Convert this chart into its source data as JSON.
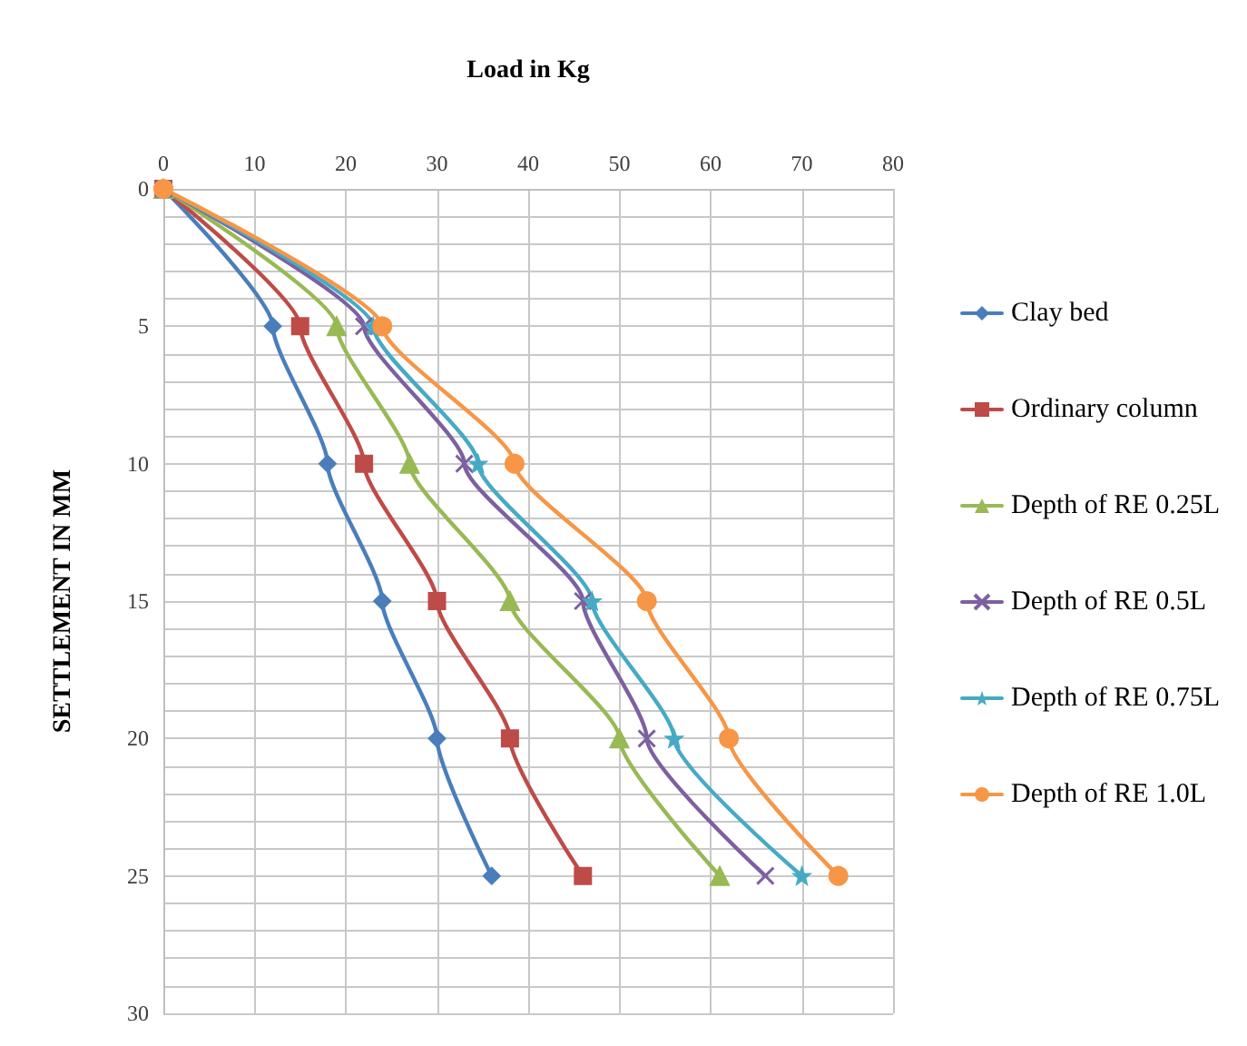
{
  "chart_data": {
    "type": "line",
    "xlabel": "Load in Kg",
    "ylabel": "SETTLEMENT IN MM",
    "xlim": [
      0,
      80
    ],
    "xticks": [
      0,
      10,
      20,
      30,
      40,
      50,
      60,
      70,
      80
    ],
    "ylim": [
      30,
      0
    ],
    "yticks": [
      0,
      {
        "value": 1,
        "label": null
      },
      {
        "value": 2,
        "label": null
      },
      {
        "value": 3,
        "label": null
      },
      {
        "value": 4,
        "label": null
      },
      5,
      {
        "value": 6,
        "label": null
      },
      {
        "value": 7,
        "label": null
      },
      {
        "value": 8,
        "label": null
      },
      {
        "value": 9,
        "label": null
      },
      10,
      {
        "value": 11,
        "label": null
      },
      {
        "value": 12,
        "label": null
      },
      {
        "value": 13,
        "label": null
      },
      {
        "value": 14,
        "label": null
      },
      15,
      {
        "value": 16,
        "label": null
      },
      {
        "value": 17,
        "label": null
      },
      {
        "value": 18,
        "label": null
      },
      {
        "value": 19,
        "label": null
      },
      20,
      {
        "value": 21,
        "label": null
      },
      {
        "value": 22,
        "label": null
      },
      {
        "value": 23,
        "label": null
      },
      {
        "value": 24,
        "label": null
      },
      25,
      {
        "value": 26,
        "label": null
      },
      {
        "value": 27,
        "label": null
      },
      {
        "value": 28,
        "label": null
      },
      {
        "value": 29,
        "label": null
      },
      30
    ],
    "grid": true,
    "legend": "right",
    "series": [
      {
        "name": "Clay bed",
        "color": "#4a7ebb",
        "marker": "diamond",
        "x": [
          0,
          12,
          18,
          24,
          30,
          36
        ],
        "values": [
          0,
          5,
          10,
          15,
          20,
          25
        ]
      },
      {
        "name": "Ordinary column",
        "color": "#be4b48",
        "marker": "square",
        "x": [
          0,
          15,
          22,
          30,
          38,
          46
        ],
        "values": [
          0,
          5,
          10,
          15,
          20,
          25
        ]
      },
      {
        "name": "Depth of RE 0.25L",
        "color": "#98b954",
        "marker": "triangle",
        "x": [
          0,
          19,
          27,
          38,
          50,
          61
        ],
        "values": [
          0,
          5,
          10,
          15,
          20,
          25
        ]
      },
      {
        "name": "Depth of RE 0.5L",
        "color": "#7d60a0",
        "marker": "cross",
        "x": [
          0,
          22,
          33,
          46,
          53,
          66
        ],
        "values": [
          0,
          5,
          10,
          15,
          20,
          25
        ]
      },
      {
        "name": "Depth of RE 0.75L",
        "color": "#46aac5",
        "marker": "star",
        "x": [
          0,
          23,
          34.5,
          47,
          56,
          70
        ],
        "values": [
          0,
          5,
          10,
          15,
          20,
          25
        ]
      },
      {
        "name": "Depth of RE 1.0L",
        "color": "#f79646",
        "marker": "circle",
        "x": [
          0,
          24,
          38.5,
          53,
          62,
          74
        ],
        "values": [
          0,
          5,
          10,
          15,
          20,
          25
        ]
      }
    ]
  }
}
